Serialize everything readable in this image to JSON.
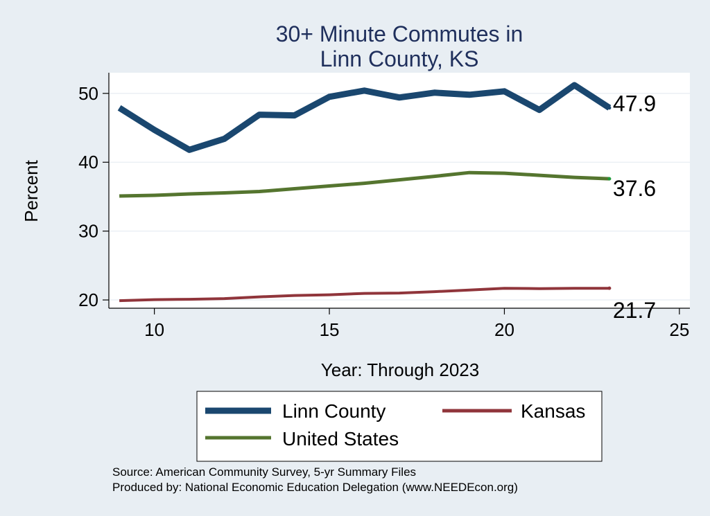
{
  "chart_data": {
    "type": "line",
    "title": [
      "30+ Minute Commutes in",
      "Linn County, KS"
    ],
    "xlabel": "Year: Through 2023",
    "ylabel": "Percent",
    "xlim": [
      8.7,
      25.3
    ],
    "ylim": [
      18.8,
      53.0
    ],
    "xticks": [
      10,
      15,
      20,
      25
    ],
    "yticks": [
      20,
      30,
      40,
      50
    ],
    "grid": true,
    "legend_position": "bottom",
    "x": [
      9,
      10,
      11,
      12,
      13,
      14,
      15,
      16,
      17,
      18,
      19,
      20,
      21,
      22,
      23
    ],
    "series": [
      {
        "name": "Linn County",
        "color": "#1a476f",
        "values": [
          47.9,
          44.7,
          41.8,
          43.4,
          46.9,
          46.8,
          49.5,
          50.4,
          49.4,
          50.1,
          49.8,
          50.3,
          47.6,
          51.2,
          47.9
        ],
        "end_label": "47.9"
      },
      {
        "name": "United States",
        "color": "#55752f",
        "values": [
          35.1,
          35.2,
          35.4,
          35.55,
          35.75,
          36.15,
          36.55,
          36.95,
          37.45,
          37.95,
          38.5,
          38.4,
          38.1,
          37.8,
          37.6
        ],
        "end_label": "37.6"
      },
      {
        "name": "Kansas",
        "color": "#90353b",
        "values": [
          19.9,
          20.05,
          20.1,
          20.2,
          20.45,
          20.65,
          20.75,
          20.95,
          21.0,
          21.2,
          21.45,
          21.7,
          21.65,
          21.7,
          21.7
        ],
        "end_label": "21.7"
      }
    ]
  },
  "legend": {
    "items": [
      {
        "name": "Linn County",
        "color": "#1a476f"
      },
      {
        "name": "Kansas",
        "color": "#90353b"
      },
      {
        "name": "United States",
        "color": "#55752f"
      }
    ]
  },
  "notes": {
    "source": "Source: American Community Survey, 5-yr Summary Files",
    "produced": "Produced by: National Economic Education Delegation (www.NEEDEcon.org)"
  }
}
